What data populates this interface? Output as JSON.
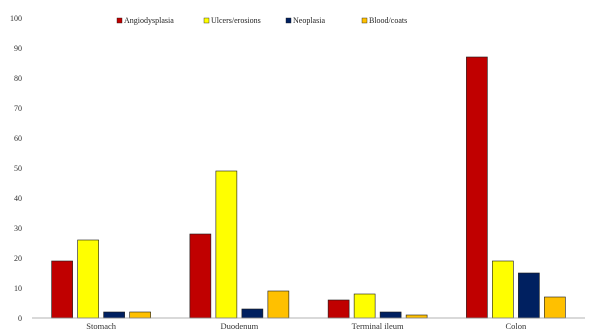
{
  "chart_data": {
    "type": "bar",
    "categories": [
      "Stomach",
      "Duodenum",
      "Terminal ileum",
      "Colon"
    ],
    "series": [
      {
        "name": "Angiodysplasia",
        "color": "#c00000",
        "values": [
          19,
          28,
          6,
          87
        ]
      },
      {
        "name": "Ulcers/erosions",
        "color": "#ffff00",
        "values": [
          26,
          49,
          8,
          19
        ]
      },
      {
        "name": "Neoplasia",
        "color": "#002060",
        "values": [
          2,
          3,
          2,
          15
        ]
      },
      {
        "name": "Blood/coats",
        "color": "#ffc000",
        "values": [
          2,
          9,
          1,
          7
        ]
      }
    ],
    "ylim": [
      0,
      100
    ],
    "yticks": [
      "0",
      "10",
      "20",
      "30",
      "40",
      "50",
      "60",
      "70",
      "80",
      "90",
      "100"
    ],
    "grid": false,
    "legend_position": "top"
  }
}
